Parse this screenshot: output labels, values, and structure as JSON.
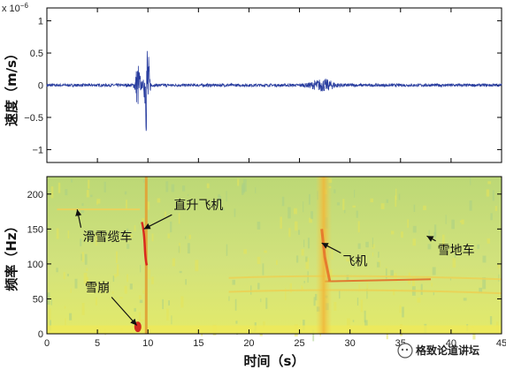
{
  "chart_data": [
    {
      "type": "line",
      "ylabel": "速度（m/s）",
      "y_scale_label": "x 10",
      "y_scale_exp": "−6",
      "xlim": [
        0,
        45
      ],
      "ylim": [
        -1.2,
        1.2
      ],
      "yticks": [
        -1,
        -0.5,
        0,
        0.5,
        1
      ],
      "ytick_labels": [
        "−1",
        "−0.5",
        "0",
        "0.5",
        "1"
      ],
      "grid": false,
      "series_color": "#2b3fa0",
      "bursts": [
        {
          "center": 9.0,
          "amplitude": 0.35
        },
        {
          "center": 9.9,
          "amplitude": 0.85
        },
        {
          "center": 27.3,
          "amplitude": 0.08
        }
      ]
    },
    {
      "type": "heatmap",
      "xlabel": "时间（s）",
      "ylabel": "频率（Hz）",
      "xlim": [
        0,
        45
      ],
      "ylim": [
        0,
        225
      ],
      "xticks": [
        0,
        5,
        10,
        15,
        20,
        25,
        30,
        35,
        40,
        45
      ],
      "xtick_labels": [
        "0",
        "5",
        "10",
        "15",
        "20",
        "25",
        "30",
        "35",
        "40",
        "45"
      ],
      "yticks": [
        0,
        50,
        100,
        150,
        200
      ],
      "ytick_labels": [
        "0",
        "50",
        "100",
        "150",
        "200"
      ],
      "background_color": "#cfe07a",
      "annotations": [
        {
          "label": "滑雪缆车",
          "target": [
            3,
            178
          ],
          "text_at": [
            6,
            133
          ]
        },
        {
          "label": "直升飞机",
          "target": [
            9.6,
            150
          ],
          "text_at": [
            15,
            178
          ]
        },
        {
          "label": "雪崩",
          "target": [
            8.9,
            12
          ],
          "text_at": [
            5,
            60
          ]
        },
        {
          "label": "飞机",
          "target": [
            27.2,
            130
          ],
          "text_at": [
            30.5,
            98
          ]
        },
        {
          "label": "雪地车",
          "target": [
            37.6,
            140
          ],
          "text_at": [
            40.5,
            114
          ]
        }
      ]
    }
  ],
  "watermark": "格致论道讲坛"
}
